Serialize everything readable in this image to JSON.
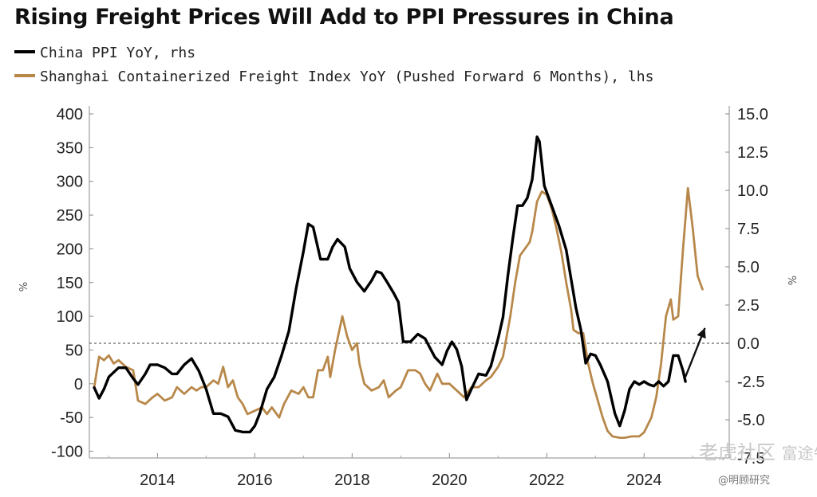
{
  "chart_data": {
    "type": "line",
    "title": "Rising Freight Prices Will Add to PPI Pressures in China",
    "legend_placement": "top-left",
    "x_axis": {
      "ticks": [
        "2014",
        "2016",
        "2018",
        "2020",
        "2022",
        "2024"
      ],
      "range": [
        2012.6,
        2025.75
      ]
    },
    "y_left": {
      "range": [
        -110,
        400
      ],
      "ticks": [
        "400",
        "350",
        "300",
        "250",
        "200",
        "150",
        "100",
        "50",
        "0",
        "-50",
        "-100"
      ],
      "unit": "%"
    },
    "y_right": {
      "range": [
        -7.5,
        15.0
      ],
      "ticks": [
        "15.0",
        "12.5",
        "10.0",
        "7.5",
        "5.0",
        "2.5",
        "0.0",
        "-2.5",
        "-5.0",
        "-7.5"
      ],
      "unit": "%"
    },
    "zero_line": true,
    "grid": false,
    "series": [
      {
        "name": "China PPI YoY, rhs",
        "axis": "right",
        "color": "#000000",
        "points": [
          [
            2012.7,
            -2.9
          ],
          [
            2012.8,
            -3.6
          ],
          [
            2012.9,
            -3.0
          ],
          [
            2013.0,
            -2.2
          ],
          [
            2013.2,
            -1.6
          ],
          [
            2013.35,
            -1.6
          ],
          [
            2013.5,
            -2.3
          ],
          [
            2013.6,
            -2.7
          ],
          [
            2013.75,
            -2.0
          ],
          [
            2013.85,
            -1.4
          ],
          [
            2014.0,
            -1.4
          ],
          [
            2014.15,
            -1.6
          ],
          [
            2014.3,
            -2.0
          ],
          [
            2014.4,
            -2.0
          ],
          [
            2014.55,
            -1.4
          ],
          [
            2014.7,
            -1.0
          ],
          [
            2014.85,
            -1.8
          ],
          [
            2015.0,
            -3.0
          ],
          [
            2015.15,
            -4.6
          ],
          [
            2015.3,
            -4.6
          ],
          [
            2015.45,
            -4.8
          ],
          [
            2015.6,
            -5.7
          ],
          [
            2015.75,
            -5.8
          ],
          [
            2015.9,
            -5.8
          ],
          [
            2016.0,
            -5.4
          ],
          [
            2016.1,
            -4.6
          ],
          [
            2016.25,
            -3.0
          ],
          [
            2016.4,
            -2.2
          ],
          [
            2016.55,
            -0.8
          ],
          [
            2016.7,
            0.8
          ],
          [
            2016.85,
            3.6
          ],
          [
            2017.0,
            6.0
          ],
          [
            2017.1,
            7.8
          ],
          [
            2017.2,
            7.6
          ],
          [
            2017.35,
            5.5
          ],
          [
            2017.5,
            5.5
          ],
          [
            2017.6,
            6.3
          ],
          [
            2017.7,
            6.8
          ],
          [
            2017.85,
            6.3
          ],
          [
            2017.95,
            4.9
          ],
          [
            2018.1,
            4.0
          ],
          [
            2018.25,
            3.4
          ],
          [
            2018.4,
            4.1
          ],
          [
            2018.5,
            4.7
          ],
          [
            2018.6,
            4.6
          ],
          [
            2018.7,
            4.1
          ],
          [
            2018.85,
            3.3
          ],
          [
            2018.95,
            2.7
          ],
          [
            2019.05,
            0.1
          ],
          [
            2019.2,
            0.1
          ],
          [
            2019.35,
            0.6
          ],
          [
            2019.5,
            0.3
          ],
          [
            2019.6,
            -0.3
          ],
          [
            2019.7,
            -0.9
          ],
          [
            2019.85,
            -1.4
          ],
          [
            2019.95,
            -0.5
          ],
          [
            2020.05,
            0.1
          ],
          [
            2020.15,
            -0.4
          ],
          [
            2020.25,
            -1.5
          ],
          [
            2020.35,
            -3.7
          ],
          [
            2020.45,
            -3.0
          ],
          [
            2020.6,
            -2.0
          ],
          [
            2020.75,
            -2.1
          ],
          [
            2020.85,
            -1.5
          ],
          [
            2021.0,
            0.3
          ],
          [
            2021.1,
            1.7
          ],
          [
            2021.2,
            4.4
          ],
          [
            2021.3,
            6.8
          ],
          [
            2021.4,
            9.0
          ],
          [
            2021.5,
            9.0
          ],
          [
            2021.6,
            9.5
          ],
          [
            2021.7,
            10.7
          ],
          [
            2021.8,
            13.5
          ],
          [
            2021.85,
            13.2
          ],
          [
            2021.95,
            10.3
          ],
          [
            2022.1,
            9.0
          ],
          [
            2022.25,
            7.7
          ],
          [
            2022.4,
            6.1
          ],
          [
            2022.5,
            4.2
          ],
          [
            2022.6,
            2.3
          ],
          [
            2022.7,
            0.9
          ],
          [
            2022.8,
            -1.3
          ],
          [
            2022.9,
            -0.7
          ],
          [
            2023.0,
            -0.8
          ],
          [
            2023.1,
            -1.4
          ],
          [
            2023.25,
            -2.5
          ],
          [
            2023.4,
            -4.6
          ],
          [
            2023.5,
            -5.4
          ],
          [
            2023.6,
            -4.4
          ],
          [
            2023.7,
            -3.0
          ],
          [
            2023.8,
            -2.5
          ],
          [
            2023.9,
            -2.7
          ],
          [
            2024.0,
            -2.5
          ],
          [
            2024.1,
            -2.7
          ],
          [
            2024.2,
            -2.8
          ],
          [
            2024.3,
            -2.5
          ],
          [
            2024.4,
            -2.8
          ],
          [
            2024.5,
            -2.5
          ],
          [
            2024.6,
            -0.8
          ],
          [
            2024.7,
            -0.8
          ],
          [
            2024.8,
            -1.8
          ],
          [
            2024.85,
            -2.5
          ]
        ]
      },
      {
        "name": "Shanghai Containerized Freight Index YoY (Pushed Forward 6 Months), lhs",
        "axis": "left",
        "color": "#b8884a",
        "points": [
          [
            2012.7,
            -5
          ],
          [
            2012.8,
            40
          ],
          [
            2012.9,
            35
          ],
          [
            2013.0,
            42
          ],
          [
            2013.1,
            30
          ],
          [
            2013.2,
            35
          ],
          [
            2013.35,
            25
          ],
          [
            2013.5,
            20
          ],
          [
            2013.6,
            -25
          ],
          [
            2013.75,
            -30
          ],
          [
            2013.9,
            -20
          ],
          [
            2014.0,
            -15
          ],
          [
            2014.15,
            -25
          ],
          [
            2014.3,
            -20
          ],
          [
            2014.4,
            -5
          ],
          [
            2014.55,
            -15
          ],
          [
            2014.7,
            -5
          ],
          [
            2014.8,
            -10
          ],
          [
            2014.9,
            -5
          ],
          [
            2015.0,
            -5
          ],
          [
            2015.15,
            5
          ],
          [
            2015.25,
            0
          ],
          [
            2015.35,
            25
          ],
          [
            2015.45,
            -5
          ],
          [
            2015.55,
            5
          ],
          [
            2015.65,
            -20
          ],
          [
            2015.75,
            -30
          ],
          [
            2015.85,
            -45
          ],
          [
            2016.0,
            -40
          ],
          [
            2016.15,
            -35
          ],
          [
            2016.25,
            -45
          ],
          [
            2016.35,
            -35
          ],
          [
            2016.5,
            -50
          ],
          [
            2016.6,
            -30
          ],
          [
            2016.75,
            -10
          ],
          [
            2016.9,
            -15
          ],
          [
            2017.0,
            -5
          ],
          [
            2017.1,
            -20
          ],
          [
            2017.2,
            -20
          ],
          [
            2017.3,
            20
          ],
          [
            2017.4,
            20
          ],
          [
            2017.5,
            40
          ],
          [
            2017.55,
            10
          ],
          [
            2017.65,
            50
          ],
          [
            2017.8,
            100
          ],
          [
            2017.9,
            70
          ],
          [
            2018.0,
            50
          ],
          [
            2018.1,
            60
          ],
          [
            2018.15,
            30
          ],
          [
            2018.25,
            0
          ],
          [
            2018.4,
            -10
          ],
          [
            2018.55,
            -5
          ],
          [
            2018.65,
            5
          ],
          [
            2018.75,
            -20
          ],
          [
            2018.9,
            -10
          ],
          [
            2019.0,
            -5
          ],
          [
            2019.15,
            20
          ],
          [
            2019.3,
            20
          ],
          [
            2019.4,
            15
          ],
          [
            2019.5,
            0
          ],
          [
            2019.6,
            -10
          ],
          [
            2019.75,
            15
          ],
          [
            2019.85,
            0
          ],
          [
            2020.0,
            0
          ],
          [
            2020.15,
            -10
          ],
          [
            2020.3,
            -20
          ],
          [
            2020.45,
            -5
          ],
          [
            2020.6,
            -5
          ],
          [
            2020.75,
            5
          ],
          [
            2020.85,
            10
          ],
          [
            2021.0,
            25
          ],
          [
            2021.1,
            40
          ],
          [
            2021.25,
            100
          ],
          [
            2021.35,
            150
          ],
          [
            2021.45,
            190
          ],
          [
            2021.55,
            200
          ],
          [
            2021.65,
            210
          ],
          [
            2021.7,
            225
          ],
          [
            2021.8,
            270
          ],
          [
            2021.9,
            285
          ],
          [
            2022.0,
            280
          ],
          [
            2022.1,
            260
          ],
          [
            2022.2,
            230
          ],
          [
            2022.3,
            195
          ],
          [
            2022.4,
            150
          ],
          [
            2022.5,
            110
          ],
          [
            2022.55,
            80
          ],
          [
            2022.65,
            75
          ],
          [
            2022.75,
            75
          ],
          [
            2022.85,
            30
          ],
          [
            2022.95,
            0
          ],
          [
            2023.05,
            -25
          ],
          [
            2023.15,
            -50
          ],
          [
            2023.25,
            -70
          ],
          [
            2023.35,
            -78
          ],
          [
            2023.5,
            -80
          ],
          [
            2023.6,
            -80
          ],
          [
            2023.75,
            -78
          ],
          [
            2023.9,
            -78
          ],
          [
            2024.0,
            -72
          ],
          [
            2024.15,
            -50
          ],
          [
            2024.25,
            -20
          ],
          [
            2024.35,
            30
          ],
          [
            2024.45,
            100
          ],
          [
            2024.55,
            125
          ],
          [
            2024.6,
            95
          ],
          [
            2024.7,
            100
          ],
          [
            2024.8,
            200
          ],
          [
            2024.9,
            290
          ],
          [
            2025.0,
            230
          ],
          [
            2025.1,
            160
          ],
          [
            2025.2,
            140
          ]
        ]
      }
    ],
    "annotations": [
      {
        "type": "arrow",
        "from": [
          2024.85,
          -2.2
        ],
        "to": [
          2025.25,
          1.0
        ],
        "axis": "right"
      }
    ]
  },
  "watermarks": {
    "main": "老虎社区",
    "main_sub": "富途牛牛",
    "source": "@明顾研究"
  }
}
